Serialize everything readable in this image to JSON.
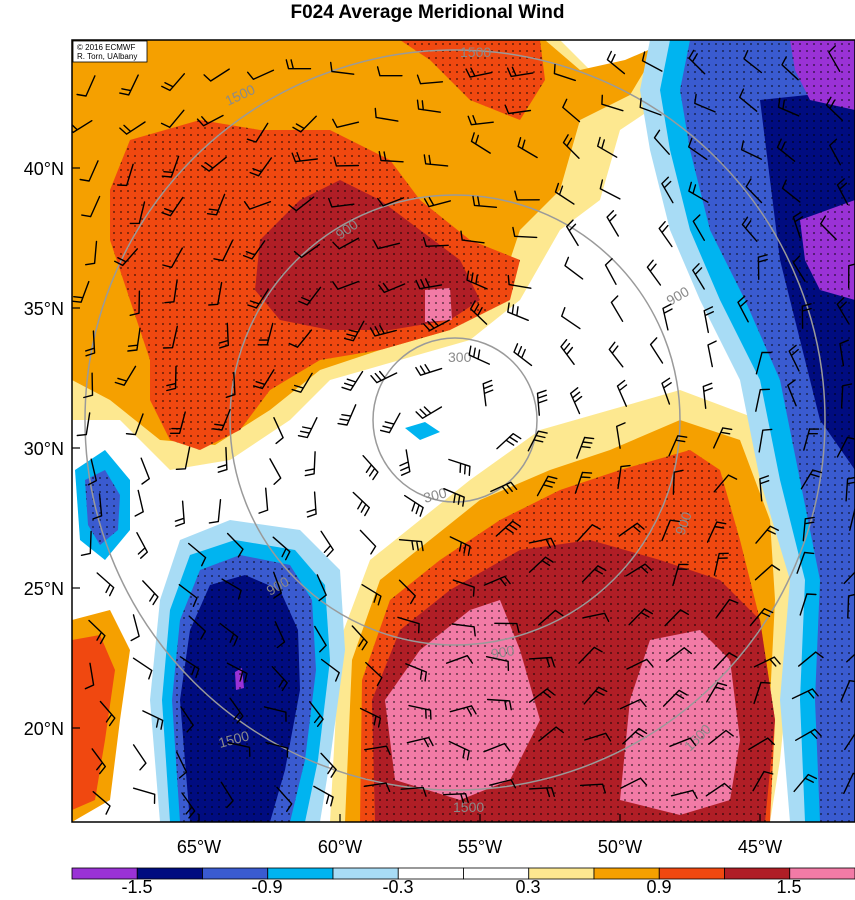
{
  "title": "F024 Average Meridional Wind",
  "credit": {
    "line1": "© 2016 ECMWF",
    "line2": "R. Torn, UAlbany"
  },
  "lat_labels": [
    "40°N",
    "35°N",
    "30°N",
    "25°N",
    "20°N"
  ],
  "lon_labels": [
    "65°W",
    "60°W",
    "55°W",
    "50°W",
    "45°W"
  ],
  "radius_labels": [
    "1500",
    "1500",
    "900",
    "900",
    "300",
    "300",
    "900",
    "900",
    "900",
    "1500",
    "1500",
    "1500"
  ],
  "colorbar": {
    "tick_labels": [
      "-1.5",
      "-0.9",
      "-0.3",
      "0.3",
      "0.9",
      "1.5"
    ],
    "colors": [
      "#9a32d6",
      "#000c80",
      "#3a5bd0",
      "#00b4f0",
      "#a8dcf5",
      "#ffffff",
      "#ffffff",
      "#fde890",
      "#f5a000",
      "#f04810",
      "#b01e26",
      "#f27ba6"
    ]
  },
  "colors": {
    "pos_weak": "#fde890",
    "pos_mid": "#f5a000",
    "pos_strong": "#f04810",
    "pos_stronger": "#b01e26",
    "pos_max": "#f27ba6",
    "neg_weak": "#a8dcf5",
    "neg_mid": "#00b4f0",
    "neg_strong": "#3a5bd0",
    "neg_stronger": "#000c80",
    "neg_max": "#9a32d6",
    "ring": "#9a9a9a"
  }
}
